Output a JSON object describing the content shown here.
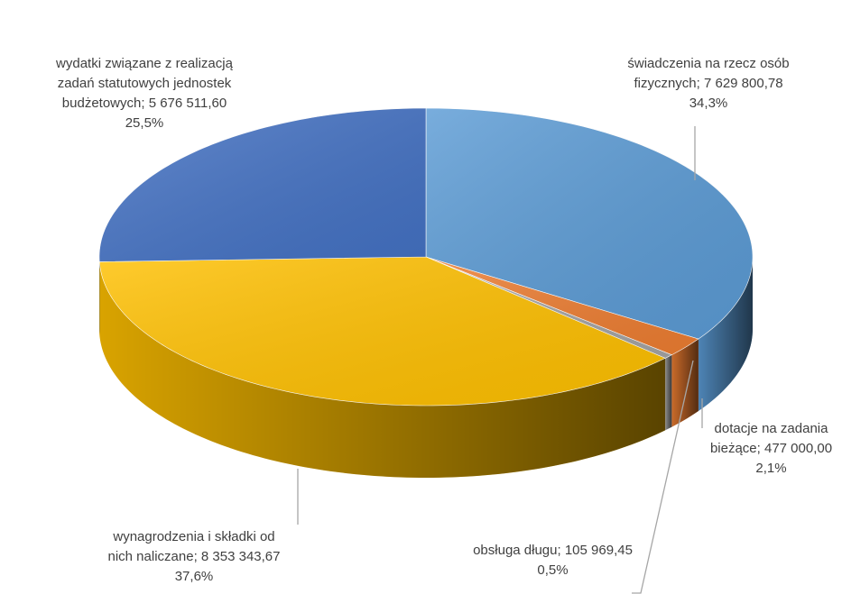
{
  "chart_data": {
    "type": "pie3d",
    "categories": [
      "świadczenia na rzecz osób fizycznych",
      "dotacje na zadania bieżące",
      "obsługa długu",
      "wynagrodzenia i składki od nich naliczane",
      "wydatki związane z realizacją zadań statutowych jednostek budżetowych"
    ],
    "separator": "; ",
    "values": [
      7629800.78,
      477000.0,
      105969.45,
      8353343.67,
      5676511.6
    ],
    "value_labels": [
      "7 629 800,78",
      "477 000,00",
      "105 969,45",
      "8 353 343,67",
      "5 676 511,60"
    ],
    "percents": [
      34.3,
      2.1,
      0.5,
      37.6,
      25.5
    ],
    "percent_labels": [
      "34,3%",
      "2,1%",
      "0,5%",
      "37,6%",
      "25,5%"
    ],
    "colors": [
      "#5b9bd5",
      "#ed7d31",
      "#a5a5a5",
      "#ffc000",
      "#4472c4"
    ]
  }
}
